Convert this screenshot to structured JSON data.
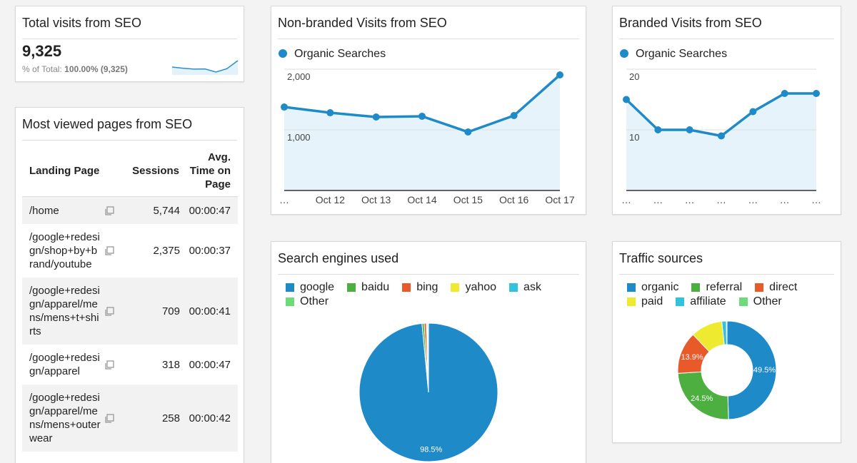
{
  "scorecard": {
    "title": "Total visits from SEO",
    "value": "9,325",
    "total_label": "% of Total:",
    "total_value": "100.00% (9,325)",
    "sparkline": {
      "type": "line",
      "color": "#2a8fd0",
      "values": [
        1391,
        1292,
        1222,
        1233,
        978,
        1251,
        1922
      ]
    }
  },
  "table": {
    "title": "Most viewed pages from SEO",
    "columns": [
      "Landing Page",
      "Sessions",
      "Avg. Time on Page"
    ],
    "rows": [
      [
        "/home",
        "5,744",
        "00:00:47"
      ],
      [
        "/google+redesign/shop+by+brand/youtube",
        "2,375",
        "00:00:37"
      ],
      [
        "/google+redesign/apparel/mens/mens+t+shirts",
        "709",
        "00:00:41"
      ],
      [
        "/google+redesign/apparel",
        "318",
        "00:00:47"
      ],
      [
        "/google+redesign/apparel/mens/mens+outerwear",
        "258",
        "00:00:42"
      ]
    ]
  },
  "chart_data": [
    {
      "type": "line",
      "title": "Non-branded Visits from SEO",
      "categories": [
        "…",
        "Oct 12",
        "Oct 13",
        "Oct 14",
        "Oct 15",
        "Oct 16",
        "Oct 17"
      ],
      "series": [
        {
          "name": "Organic Searches",
          "color": "#1f8ac8",
          "values": [
            1376,
            1282,
            1212,
            1224,
            965,
            1235,
            1906
          ]
        }
      ],
      "ylim": [
        0,
        2000
      ],
      "yticks": [
        {
          "value": 1000,
          "label": "1,000"
        },
        {
          "value": 2000,
          "label": "2,000"
        }
      ],
      "grid": true
    },
    {
      "type": "line",
      "title": "Branded Visits from SEO",
      "categories": [
        "…",
        "…",
        "…",
        "…",
        "…",
        "…",
        "…"
      ],
      "series": [
        {
          "name": "Organic Searches",
          "color": "#1f8ac8",
          "values": [
            15,
            10,
            10,
            9,
            13,
            16,
            16
          ]
        }
      ],
      "ylim": [
        0,
        20
      ],
      "yticks": [
        10,
        20
      ],
      "grid": true
    },
    {
      "type": "pie",
      "title": "Search engines used",
      "categories": [
        "google",
        "baidu",
        "bing",
        "yahoo",
        "ask",
        "Other"
      ],
      "values": [
        98.5,
        0.5,
        0.5,
        0.2,
        0.2,
        0.1
      ],
      "value_labels": [
        "98.5%",
        null,
        null,
        null,
        null,
        null
      ],
      "colors": [
        "#1f8ac8",
        "#4caf3f",
        "#e95a2b",
        "#eeea2f",
        "#32c3dc",
        "#6edb7a"
      ]
    },
    {
      "type": "donut",
      "title": "Traffic sources",
      "categories": [
        "organic",
        "referral",
        "direct",
        "paid",
        "affiliate",
        "Other"
      ],
      "values": [
        49.5,
        24.5,
        13.9,
        10.4,
        1.5,
        0.2
      ],
      "value_labels": [
        "49.5%",
        "24.5%",
        "13.9%",
        null,
        null,
        null
      ],
      "colors": [
        "#1f8ac8",
        "#4caf3f",
        "#e95a2b",
        "#eeea2f",
        "#32c3dc",
        "#6edb7a"
      ]
    }
  ]
}
